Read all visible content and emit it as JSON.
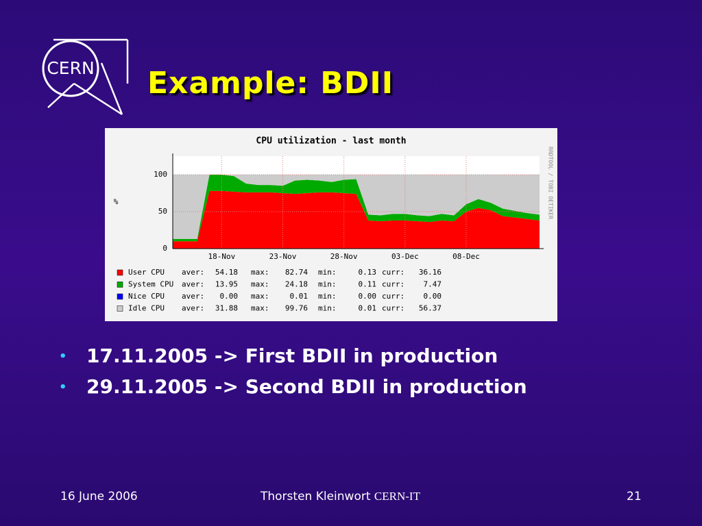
{
  "logo": "CERN",
  "title": "Example: BDII",
  "chart_data": {
    "type": "stacked-area",
    "title": "CPU utilization - last month",
    "y_label": "%",
    "side_label": "RRDTOOL / TOBI OETIKER",
    "categories": [
      null,
      null,
      null,
      null,
      "18-Nov",
      null,
      null,
      null,
      null,
      "23-Nov",
      null,
      null,
      null,
      null,
      "28-Nov",
      null,
      null,
      null,
      null,
      "03-Dec",
      null,
      null,
      null,
      null,
      "08-Dec",
      null,
      null,
      null,
      null,
      null,
      null
    ],
    "ylim": [
      0,
      125
    ],
    "yticks": [
      0,
      50,
      100
    ],
    "grid": true,
    "series": [
      {
        "name": "User CPU",
        "color": "#ff0000",
        "values": [
          10,
          10,
          10,
          78,
          78,
          77,
          76,
          76,
          76,
          75,
          74,
          75,
          76,
          76,
          75,
          74,
          38,
          37,
          38,
          38,
          37,
          36,
          38,
          37,
          50,
          55,
          52,
          44,
          42,
          40,
          38
        ],
        "stats": [
          [
            "aver:",
            "54.18"
          ],
          [
            "max:",
            "82.74"
          ],
          [
            "min:",
            "0.13"
          ],
          [
            "curr:",
            "36.16"
          ]
        ]
      },
      {
        "name": "System CPU",
        "color": "#00aa00",
        "values": [
          3,
          3,
          3,
          22,
          22,
          21,
          12,
          10,
          10,
          10,
          18,
          18,
          16,
          14,
          18,
          20,
          8,
          8,
          9,
          9,
          8,
          8,
          9,
          8,
          10,
          12,
          10,
          10,
          9,
          8,
          8
        ],
        "stats": [
          [
            "aver:",
            "13.95"
          ],
          [
            "max:",
            "24.18"
          ],
          [
            "min:",
            "0.11"
          ],
          [
            "curr:",
            "7.47"
          ]
        ]
      },
      {
        "name": "Nice CPU",
        "color": "#0000ff",
        "values": [
          0,
          0,
          0,
          0,
          0,
          0,
          0,
          0,
          0,
          0,
          0,
          0,
          0,
          0,
          0,
          0,
          0,
          0,
          0,
          0,
          0,
          0,
          0,
          0,
          0,
          0,
          0,
          0,
          0,
          0,
          0
        ],
        "stats": [
          [
            "aver:",
            "0.00"
          ],
          [
            "max:",
            "0.01"
          ],
          [
            "min:",
            "0.00"
          ],
          [
            "curr:",
            "0.00"
          ]
        ]
      },
      {
        "name": "Idle CPU",
        "color": "#cccccc",
        "values": [
          87,
          87,
          87,
          0,
          0,
          2,
          12,
          14,
          14,
          15,
          8,
          7,
          8,
          10,
          7,
          6,
          54,
          55,
          53,
          53,
          55,
          56,
          53,
          55,
          40,
          33,
          38,
          46,
          49,
          52,
          54
        ],
        "stats": [
          [
            "aver:",
            "31.88"
          ],
          [
            "max:",
            "99.76"
          ],
          [
            "min:",
            "0.01"
          ],
          [
            "curr:",
            "56.37"
          ]
        ]
      }
    ]
  },
  "bullets": [
    "17.11.2005 -> First BDII in production",
    "29.11.2005 -> Second BDII in production"
  ],
  "footer": {
    "date": "16 June 2006",
    "author": "Thorsten Kleinwort",
    "org": "CERN-IT",
    "page": "21"
  }
}
